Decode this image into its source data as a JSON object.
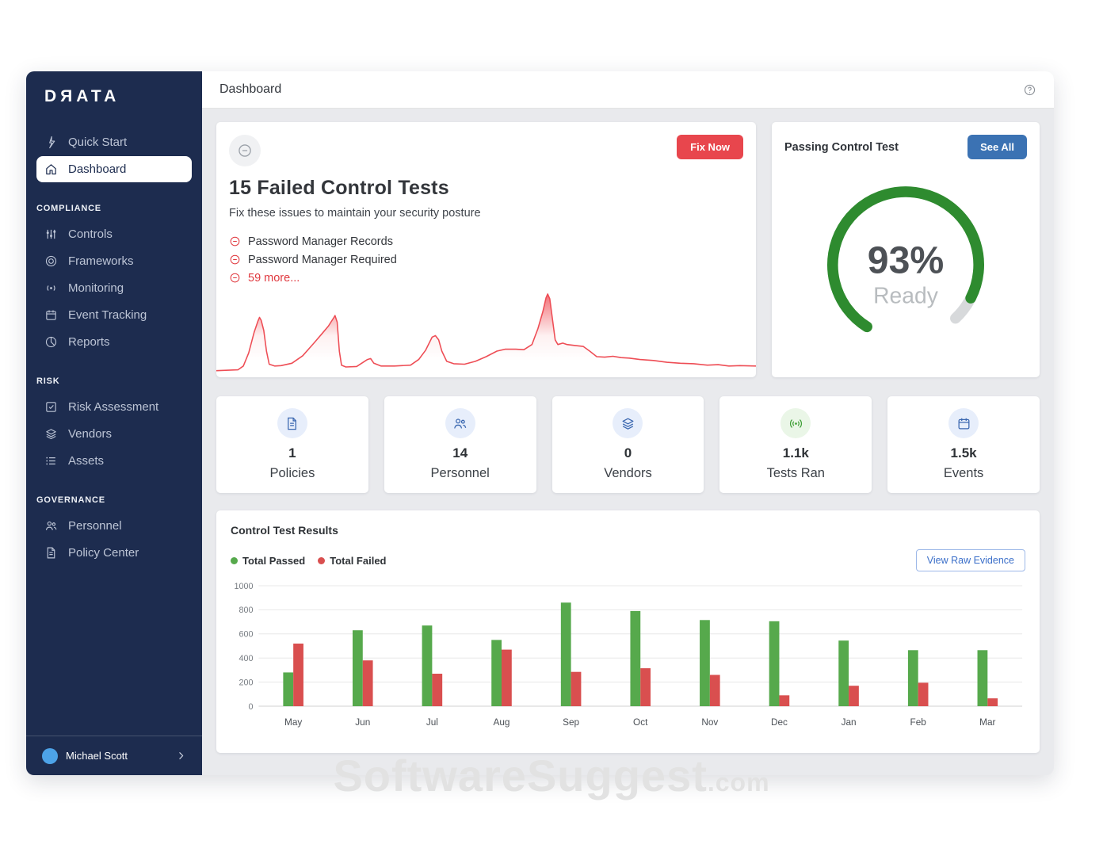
{
  "app": {
    "logo": "DЯATA"
  },
  "topbar": {
    "title": "Dashboard"
  },
  "sidebar": {
    "primary": [
      {
        "label": "Quick Start",
        "icon": "bolt",
        "selected": false
      },
      {
        "label": "Dashboard",
        "icon": "home",
        "selected": true
      }
    ],
    "sections": [
      {
        "label": "COMPLIANCE",
        "items": [
          {
            "label": "Controls",
            "icon": "sliders"
          },
          {
            "label": "Frameworks",
            "icon": "target"
          },
          {
            "label": "Monitoring",
            "icon": "signal"
          },
          {
            "label": "Event Tracking",
            "icon": "calendar"
          },
          {
            "label": "Reports",
            "icon": "pie"
          }
        ]
      },
      {
        "label": "RISK",
        "items": [
          {
            "label": "Risk Assessment",
            "icon": "check-square"
          },
          {
            "label": "Vendors",
            "icon": "layers"
          },
          {
            "label": "Assets",
            "icon": "list"
          }
        ]
      },
      {
        "label": "GOVERNANCE",
        "items": [
          {
            "label": "Personnel",
            "icon": "people"
          },
          {
            "label": "Policy Center",
            "icon": "doc"
          }
        ]
      }
    ],
    "user": {
      "name": "Michael Scott"
    }
  },
  "failed_card": {
    "title": "15 Failed Control Tests",
    "subtitle": "Fix these issues to maintain your security posture",
    "items": [
      "Password Manager Records",
      "Password Manager Required"
    ],
    "more_label": "59 more...",
    "button": "Fix Now"
  },
  "passing_card": {
    "title": "Passing Control Test",
    "button": "See All",
    "percent": 93,
    "percent_label": "93%",
    "status": "Ready"
  },
  "stats": [
    {
      "value": "1",
      "label": "Policies",
      "icon": "doc",
      "tint": "blue"
    },
    {
      "value": "14",
      "label": "Personnel",
      "icon": "people",
      "tint": "blue"
    },
    {
      "value": "0",
      "label": "Vendors",
      "icon": "layers",
      "tint": "blue"
    },
    {
      "value": "1.1k",
      "label": "Tests Ran",
      "icon": "broadcast",
      "tint": "green"
    },
    {
      "value": "1.5k",
      "label": "Events",
      "icon": "calendar",
      "tint": "blue"
    }
  ],
  "results_card": {
    "title": "Control Test Results",
    "legend": [
      {
        "label": "Total Passed",
        "color": "#56a94c"
      },
      {
        "label": "Total Failed",
        "color": "#d94f4f"
      }
    ],
    "button": "View Raw Evidence"
  },
  "chart_data": [
    {
      "id": "control_test_results",
      "type": "bar",
      "title": "Control Test Results",
      "categories": [
        "May",
        "Jun",
        "Jul",
        "Aug",
        "Sep",
        "Oct",
        "Nov",
        "Dec",
        "Jan",
        "Feb",
        "Mar"
      ],
      "series": [
        {
          "name": "Total Passed",
          "color": "#56a94c",
          "values": [
            280,
            630,
            670,
            550,
            860,
            790,
            715,
            705,
            545,
            465,
            465
          ]
        },
        {
          "name": "Total Failed",
          "color": "#d94f4f",
          "values": [
            520,
            380,
            270,
            470,
            285,
            315,
            260,
            90,
            170,
            195,
            65
          ]
        }
      ],
      "ylim": [
        0,
        1000
      ],
      "yticks": [
        0,
        200,
        400,
        600,
        800,
        1000
      ],
      "grid": true,
      "legend_position": "top-left"
    },
    {
      "id": "failed_tests_trend",
      "type": "area",
      "title": "Failed control tests trend (unlabeled sparkline)",
      "color": "#ee4d55",
      "note": "normalized shape coordinates, x 0-100 left-right, y 0-100 top-bottom, baseline ~93",
      "points": [
        [
          0,
          93
        ],
        [
          4,
          92
        ],
        [
          5,
          88
        ],
        [
          6,
          74
        ],
        [
          7,
          52
        ],
        [
          7.7,
          40
        ],
        [
          8,
          36
        ],
        [
          8.3,
          39
        ],
        [
          8.8,
          50
        ],
        [
          9.3,
          72
        ],
        [
          9.8,
          86
        ],
        [
          10.8,
          88
        ],
        [
          12,
          87.5
        ],
        [
          14,
          85
        ],
        [
          16,
          77
        ],
        [
          18,
          64
        ],
        [
          19.5,
          54
        ],
        [
          20.8,
          45
        ],
        [
          21.8,
          36
        ],
        [
          22,
          34
        ],
        [
          22.4,
          41
        ],
        [
          22.8,
          72
        ],
        [
          23.2,
          87
        ],
        [
          24,
          89
        ],
        [
          26,
          88.5
        ],
        [
          28,
          81
        ],
        [
          28.6,
          80
        ],
        [
          29.2,
          85
        ],
        [
          30.5,
          88
        ],
        [
          33,
          88
        ],
        [
          36,
          87
        ],
        [
          37.5,
          81
        ],
        [
          38.8,
          71
        ],
        [
          40,
          57
        ],
        [
          40.6,
          55.5
        ],
        [
          41.2,
          60
        ],
        [
          41.8,
          72
        ],
        [
          42.7,
          83
        ],
        [
          44,
          85.5
        ],
        [
          46,
          86
        ],
        [
          48,
          83
        ],
        [
          50,
          78
        ],
        [
          52,
          72
        ],
        [
          53.5,
          70
        ],
        [
          55.5,
          70
        ],
        [
          57,
          70.5
        ],
        [
          58.5,
          65
        ],
        [
          59.6,
          48
        ],
        [
          60.5,
          30
        ],
        [
          61.1,
          15
        ],
        [
          61.4,
          11
        ],
        [
          61.8,
          16
        ],
        [
          62.3,
          38
        ],
        [
          62.8,
          60
        ],
        [
          63.3,
          65
        ],
        [
          64.2,
          63.5
        ],
        [
          65,
          65
        ],
        [
          66.5,
          66
        ],
        [
          68,
          67
        ],
        [
          69.2,
          72
        ],
        [
          70.5,
          78
        ],
        [
          72,
          78.5
        ],
        [
          73.5,
          77.5
        ],
        [
          75,
          79
        ],
        [
          76.5,
          79.5
        ],
        [
          78.5,
          81
        ],
        [
          81,
          82
        ],
        [
          83.5,
          84
        ],
        [
          86,
          85
        ],
        [
          88.5,
          85.5
        ],
        [
          91,
          87
        ],
        [
          93,
          86.5
        ],
        [
          95,
          88
        ],
        [
          97,
          87.5
        ],
        [
          100,
          88
        ]
      ]
    }
  ],
  "watermark": {
    "text": "SoftwareSuggest",
    "suffix": ".com"
  },
  "colors": {
    "sidebar_navy": "#1d2c4f",
    "accent_red": "#e8464d",
    "accent_blue": "#3b72b3",
    "gauge_green": "#2e8b2f",
    "gauge_rest_gray": "#d7d9db",
    "bar_green": "#56a94c",
    "bar_red": "#d94f4f",
    "avatar_blue": "#4da3e8",
    "trend_red": "#ee4d55"
  }
}
